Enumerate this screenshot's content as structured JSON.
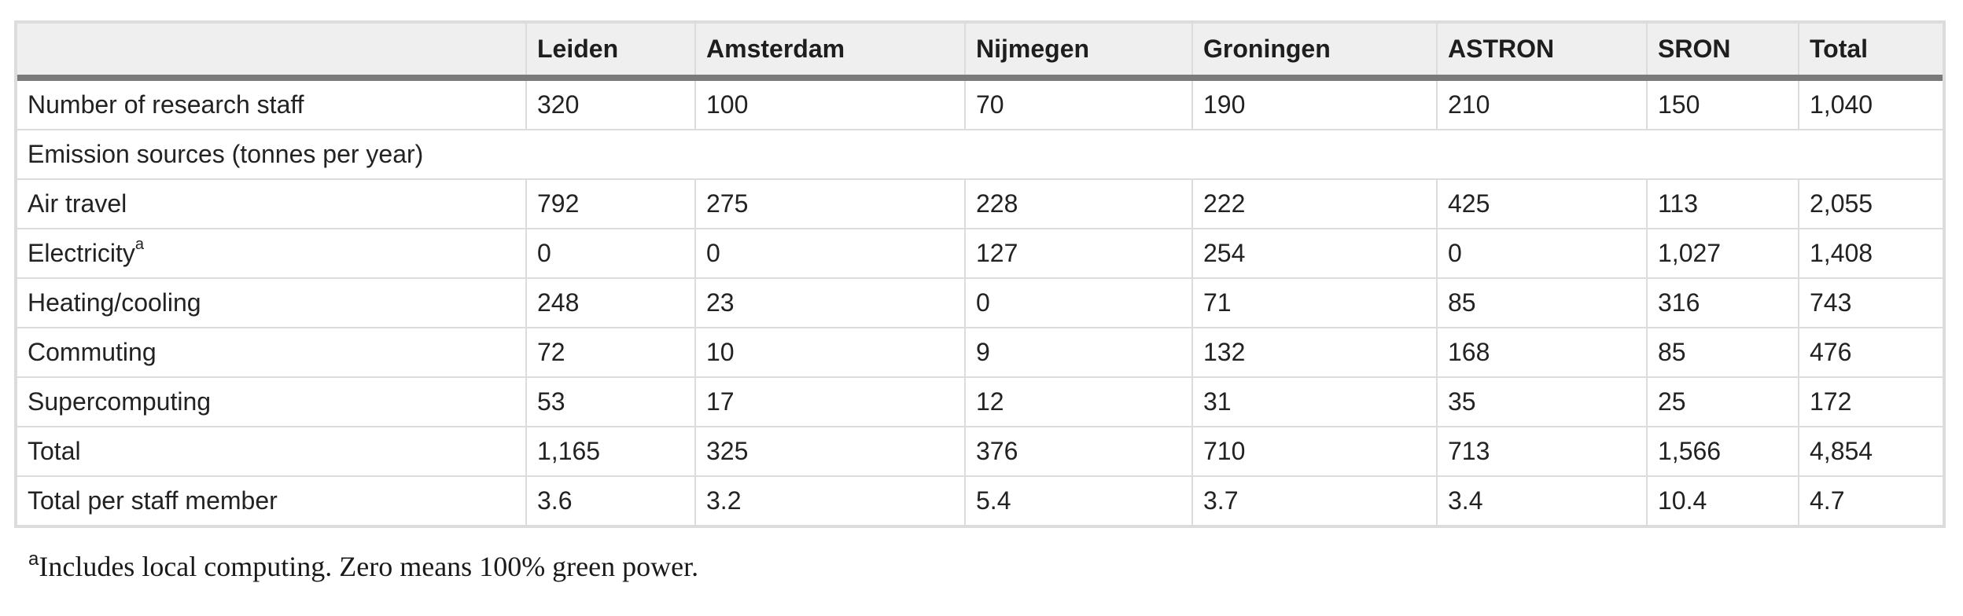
{
  "table": {
    "header": [
      "",
      "Leiden",
      "Amsterdam",
      "Nijmegen",
      "Groningen",
      "ASTRON",
      "SRON",
      "Total"
    ],
    "staff_row": {
      "label": "Number of research staff",
      "values": [
        "320",
        "100",
        "70",
        "190",
        "210",
        "150",
        "1,040"
      ]
    },
    "section_label": "Emission sources (tonnes per year)",
    "emission_rows": [
      {
        "label": "Air travel",
        "sup": "",
        "values": [
          "792",
          "275",
          "228",
          "222",
          "425",
          "113",
          "2,055"
        ]
      },
      {
        "label": "Electricity",
        "sup": "a",
        "values": [
          "0",
          "0",
          "127",
          "254",
          "0",
          "1,027",
          "1,408"
        ]
      },
      {
        "label": "Heating/cooling",
        "sup": "",
        "values": [
          "248",
          "23",
          "0",
          "71",
          "85",
          "316",
          "743"
        ]
      },
      {
        "label": "Commuting",
        "sup": "",
        "values": [
          "72",
          "10",
          "9",
          "132",
          "168",
          "85",
          "476"
        ]
      },
      {
        "label": "Supercomputing",
        "sup": "",
        "values": [
          "53",
          "17",
          "12",
          "31",
          "35",
          "25",
          "172"
        ]
      }
    ],
    "total_row": {
      "label": "Total",
      "values": [
        "1,165",
        "325",
        "376",
        "710",
        "713",
        "1,566",
        "4,854"
      ]
    },
    "per_staff_row": {
      "label": "Total per staff member",
      "values": [
        "3.6",
        "3.2",
        "5.4",
        "3.7",
        "3.4",
        "10.4",
        "4.7"
      ]
    }
  },
  "footnote": {
    "marker": "a",
    "text": "Includes local computing. Zero means 100% green power."
  }
}
